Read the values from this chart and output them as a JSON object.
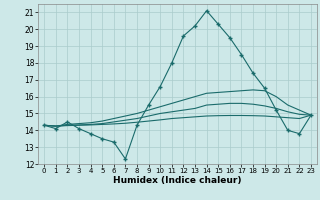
{
  "xlabel": "Humidex (Indice chaleur)",
  "ylabel": "",
  "bg_color": "#cde8e8",
  "grid_color": "#aacccc",
  "line_color": "#1a6b6b",
  "xlim": [
    -0.5,
    23.5
  ],
  "ylim": [
    12,
    21.5
  ],
  "yticks": [
    12,
    13,
    14,
    15,
    16,
    17,
    18,
    19,
    20,
    21
  ],
  "xticks": [
    0,
    1,
    2,
    3,
    4,
    5,
    6,
    7,
    8,
    9,
    10,
    11,
    12,
    13,
    14,
    15,
    16,
    17,
    18,
    19,
    20,
    21,
    22,
    23
  ],
  "line_main": {
    "x": [
      0,
      1,
      2,
      3,
      4,
      5,
      6,
      7,
      8,
      9,
      10,
      11,
      12,
      13,
      14,
      15,
      16,
      17,
      18,
      19,
      20,
      21,
      22,
      23
    ],
    "y": [
      14.3,
      14.1,
      14.5,
      14.1,
      13.8,
      13.5,
      13.3,
      12.3,
      14.3,
      15.5,
      16.6,
      18.0,
      19.6,
      20.2,
      21.1,
      20.3,
      19.5,
      18.5,
      17.4,
      16.5,
      15.2,
      14.0,
      13.8,
      14.9
    ]
  },
  "smooth_lines": [
    {
      "x": [
        0,
        1,
        2,
        3,
        4,
        5,
        6,
        7,
        8,
        9,
        10,
        11,
        12,
        13,
        14,
        15,
        16,
        17,
        18,
        19,
        20,
        21,
        22,
        23
      ],
      "y": [
        14.3,
        14.25,
        14.35,
        14.4,
        14.45,
        14.55,
        14.7,
        14.85,
        15.0,
        15.2,
        15.4,
        15.6,
        15.8,
        16.0,
        16.2,
        16.25,
        16.3,
        16.35,
        16.4,
        16.35,
        16.0,
        15.5,
        15.2,
        14.9
      ]
    },
    {
      "x": [
        0,
        1,
        2,
        3,
        4,
        5,
        6,
        7,
        8,
        9,
        10,
        11,
        12,
        13,
        14,
        15,
        16,
        17,
        18,
        19,
        20,
        21,
        22,
        23
      ],
      "y": [
        14.3,
        14.25,
        14.3,
        14.32,
        14.35,
        14.4,
        14.5,
        14.6,
        14.7,
        14.85,
        15.0,
        15.1,
        15.2,
        15.3,
        15.5,
        15.55,
        15.6,
        15.6,
        15.55,
        15.45,
        15.3,
        15.1,
        14.95,
        14.9
      ]
    },
    {
      "x": [
        0,
        1,
        2,
        3,
        4,
        5,
        6,
        7,
        8,
        9,
        10,
        11,
        12,
        13,
        14,
        15,
        16,
        17,
        18,
        19,
        20,
        21,
        22,
        23
      ],
      "y": [
        14.3,
        14.25,
        14.28,
        14.3,
        14.32,
        14.35,
        14.38,
        14.42,
        14.48,
        14.55,
        14.62,
        14.7,
        14.75,
        14.8,
        14.85,
        14.87,
        14.88,
        14.88,
        14.87,
        14.85,
        14.8,
        14.75,
        14.7,
        14.9
      ]
    }
  ]
}
